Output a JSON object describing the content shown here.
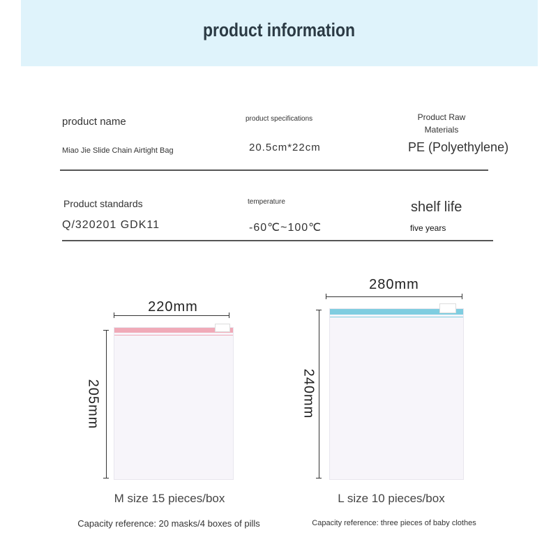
{
  "header": {
    "title": "product information"
  },
  "info": {
    "row1": {
      "name_label": "product name",
      "name_value": "Miao Jie Slide Chain Airtight Bag",
      "spec_label": "product specifications",
      "spec_value": "20.5cm*22cm",
      "material_label": "Product Raw Materials",
      "material_value": "PE (Polyethylene)"
    },
    "row2": {
      "standard_label": "Product standards",
      "standard_value": "Q/320201 GDK11",
      "temp_label": "temperature",
      "temp_value": "-60℃~100℃",
      "shelf_label": "shelf life",
      "shelf_value": "five years"
    }
  },
  "bags": [
    {
      "width": "220mm",
      "height": "205mm",
      "size": "M size 15 pieces/box",
      "capacity": "Capacity reference: 20 masks/4 boxes of pills",
      "zip_color": "#f0aab8"
    },
    {
      "width": "280mm",
      "height": "240mm",
      "size": "L size 10 pieces/box",
      "capacity": "Capacity reference: three pieces of baby clothes",
      "zip_color": "#7fcde0"
    }
  ]
}
